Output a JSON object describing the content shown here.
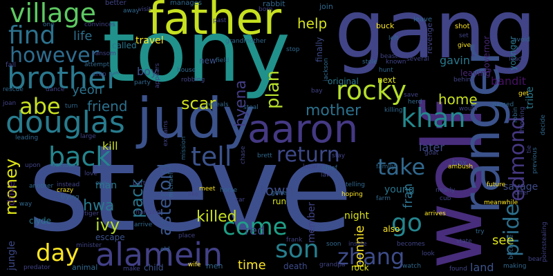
{
  "words": {
    "steve": "steve",
    "tony": "tony",
    "gang": "gang",
    "father": "father",
    "wolf": "wolf",
    "judy": "judy",
    "aaron": "aaron",
    "ranger": "ranger",
    "alamein": "alamein",
    "douglas": "douglas",
    "brother": "brother",
    "village": "village",
    "find": "find",
    "however": "however",
    "abe": "abe",
    "back": "back",
    "rocky": "rocky",
    "khan": "khan",
    "tell": "tell",
    "return": "return",
    "take": "take",
    "son": "son",
    "zhang": "zhang",
    "come": "come",
    "go": "go",
    "day": "day",
    "pride": "pride",
    "edmond": "edmond",
    "money": "money",
    "mother": "mother",
    "killed": "killed",
    "scar": "scar",
    "hyena": "hyena",
    "plan": "plan",
    "asteroid": "asteroid",
    "pack": "pack",
    "hwa": "hwa",
    "ivy": "ivy",
    "friend": "friend",
    "yeon": "yeon",
    "help": "help",
    "life": "life",
    "home": "home",
    "gavin": "gavin",
    "later": "later",
    "fran": "fran",
    "bonnie": "bonnie",
    "see": "see",
    "time": "time",
    "town": "town",
    "night": "night",
    "young": "young",
    "red": "red",
    "jungle": "jungle",
    "drive": "drive",
    "kill": "kill",
    "bandit": "bandit",
    "savage": "savage",
    "land": "land",
    "boy": "boy",
    "travel": "travel",
    "new": "new",
    "finally": "finally",
    "original": "original",
    "next": "next",
    "leaving": "leaving",
    "clyde": "clyde",
    "member": "member",
    "man": "man",
    "escape": "escape",
    "child": "child",
    "run": "run",
    "rock": "rock",
    "death": "death",
    "also": "also",
    "box": "box",
    "tribe": "tribe",
    "called": "called",
    "governor": "governor",
    "younger": "younger",
    "revenge": "revenge",
    "join": "join",
    "rabbit": "rabbit",
    "manages": "manages",
    "better": "better",
    "away": "away",
    "visit": "visit",
    "convinces": "convinces",
    "one": "one",
    "past": "past",
    "born": "born",
    "grandmother": "grandmother",
    "buck": "buck",
    "leave": "leave",
    "shot": "shot",
    "set": "set",
    "give": "give",
    "avoid": "avoid",
    "lead": "lead",
    "left": "left",
    "stop": "stop",
    "beast": "beast",
    "stole": "stole",
    "hunt": "hunt",
    "several": "several",
    "known": "known",
    "jackson": "jackson",
    "fall": "fall",
    "ransom": "ransom",
    "attempt": "attempt",
    "crop": "crop",
    "party": "party",
    "appears": "appears",
    "house": "house",
    "robbing": "robbing",
    "field": "field",
    "rescue": "rescue",
    "dance": "dance",
    "turn": "turn",
    "joan": "joan",
    "reveals": "reveals",
    "steal": "steal",
    "explains": "explains",
    "mission": "mission",
    "leading": "leading",
    "large": "large",
    "decides": "decides",
    "upon": "upon",
    "another": "another",
    "instead": "instead",
    "eye": "eye",
    "part": "part",
    "michael": "michael",
    "chase": "chase",
    "brett": "brett",
    "horse": "horse",
    "stay": "stay",
    "family": "family",
    "local": "local",
    "chief": "chief",
    "law": "law",
    "telling": "telling",
    "goat": "goat",
    "ambush": "ambush",
    "bay": "bay",
    "herd": "herd",
    "save": "save",
    "killing": "killing",
    "behind": "behind",
    "named": "named",
    "would": "would",
    "get": "get",
    "robin": "robin",
    "throwing": "throwing",
    "decide": "decide",
    "tie": "tie",
    "previous": "previous",
    "future": "future",
    "offer": "offer",
    "meanwhile": "meanwhile",
    "love": "love",
    "crazy": "crazy",
    "trying": "trying",
    "tiger": "tiger",
    "way": "way",
    "hanging": "hanging",
    "arrive": "arrive",
    "like": "like",
    "meet": "meet",
    "car": "car",
    "gone": "gone",
    "hoping": "hoping",
    "farm": "farm",
    "nearly": "nearly",
    "cub": "cub",
    "arrives": "arrives",
    "try": "try",
    "state": "state",
    "become": "become",
    "pointstealing": "pointstealing",
    "minister": "minister",
    "predator": "predator",
    "animal": "animal",
    "make": "make",
    "wife": "wife",
    "old": "old",
    "place": "place",
    "men": "men",
    "frank": "frank",
    "soon": "soon",
    "inside": "inside",
    "becomes": "becomes",
    "grandpa": "grandpa",
    "watch": "watch",
    "look": "look",
    "found": "found",
    "making": "making",
    "bear": "bear"
  }
}
